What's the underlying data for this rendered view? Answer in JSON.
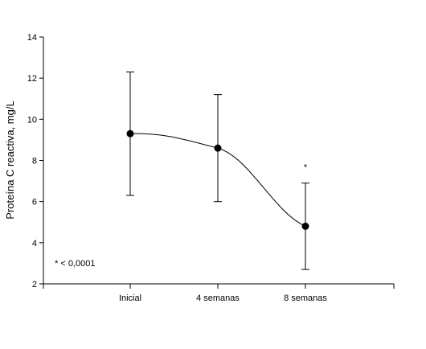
{
  "chart_data": {
    "type": "line",
    "title": "",
    "xlabel": "",
    "ylabel": "Proteína C reactiva, mg/L",
    "categories": [
      "Inicial",
      "4 semanas",
      "8 semanas"
    ],
    "series": [
      {
        "values": [
          9.3,
          8.6,
          4.8
        ],
        "error_upper": [
          12.3,
          11.2,
          6.9
        ],
        "error_lower": [
          6.3,
          6.0,
          2.7
        ],
        "significance_markers": [
          "",
          "",
          "*"
        ]
      }
    ],
    "ylim": [
      2,
      14
    ],
    "yticks": [
      "2",
      "4",
      "6",
      "8",
      "10",
      "12",
      "14"
    ],
    "grid": false,
    "legend": "none",
    "annotation": "* < 0,0001",
    "line_smoothed": true,
    "colors": {
      "line": "#000000",
      "marker": "#000000"
    }
  }
}
